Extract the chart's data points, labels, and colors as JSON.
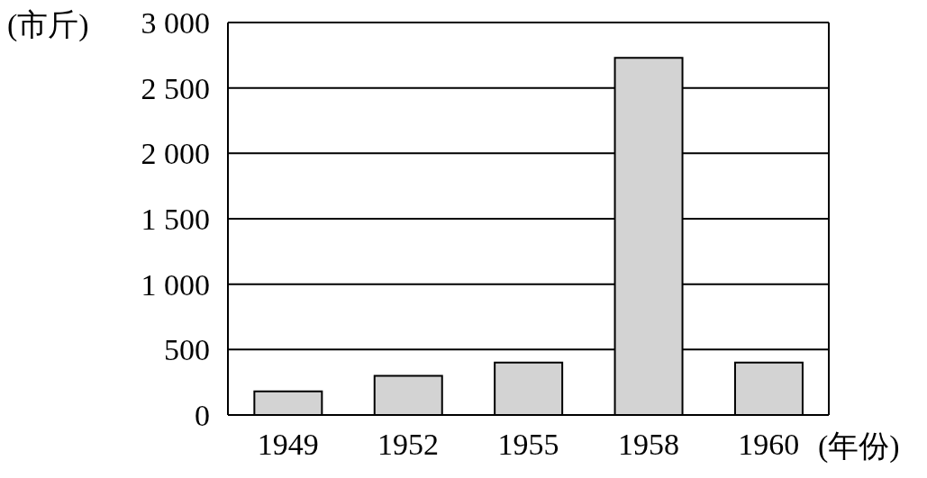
{
  "chart_data": {
    "type": "bar",
    "ylabel": "(市斤)",
    "xlabel": "(年份)",
    "categories": [
      "1949",
      "1952",
      "1955",
      "1958",
      "1960"
    ],
    "values": [
      180,
      300,
      400,
      2730,
      400
    ],
    "color": "#d3d3d3",
    "ylim": [
      0,
      3000
    ],
    "yticks": [
      0,
      500,
      {
        "value": 1000,
        "label": "1 000"
      },
      {
        "value": 1500,
        "label": "1 500"
      },
      {
        "value": 2000,
        "label": "2 000"
      },
      {
        "value": 2500,
        "label": "2 500"
      },
      {
        "value": 3000,
        "label": "3 000"
      }
    ],
    "grid": "y",
    "legend": false
  }
}
